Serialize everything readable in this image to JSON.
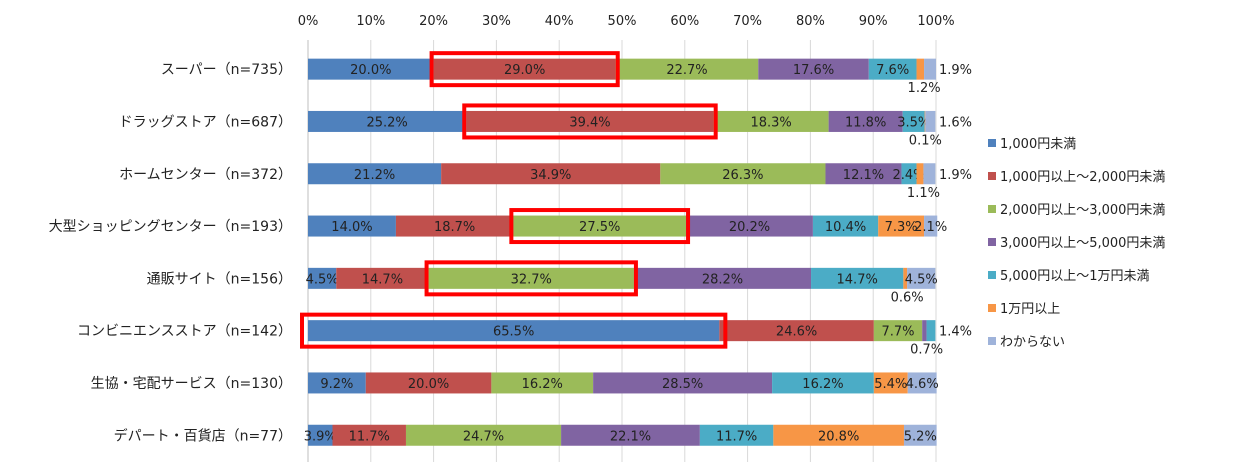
{
  "chart_data": {
    "type": "bar",
    "orientation": "horizontal",
    "stacked": true,
    "xlim": [
      0,
      100
    ],
    "xticks": [
      "0%",
      "10%",
      "20%",
      "30%",
      "40%",
      "50%",
      "60%",
      "70%",
      "80%",
      "90%",
      "100%"
    ],
    "categories": [
      "スーパー（n=735）",
      "ドラッグストア（n=687）",
      "ホームセンター（n=372）",
      "大型ショッピングセンター（n=193）",
      "通販サイト（n=156）",
      "コンビニエンスストア（n=142）",
      "生協・宅配サービス（n=130）",
      "デパート・百貨店（n=77）"
    ],
    "series": [
      {
        "name": "1,000円未満",
        "color": "#4f81bd",
        "values": [
          20.0,
          25.2,
          21.2,
          14.0,
          4.5,
          65.5,
          9.2,
          3.9
        ]
      },
      {
        "name": "1,000円以上～2,000円未満",
        "color": "#c0504d",
        "values": [
          29.0,
          39.4,
          34.9,
          18.7,
          14.7,
          24.6,
          20.0,
          11.7
        ]
      },
      {
        "name": "2,000円以上～3,000円未満",
        "color": "#9bbb59",
        "values": [
          22.7,
          18.3,
          26.3,
          27.5,
          32.7,
          7.7,
          16.2,
          24.7
        ]
      },
      {
        "name": "3,000円以上～5,000円未満",
        "color": "#8064a2",
        "values": [
          17.6,
          11.8,
          12.1,
          20.2,
          28.2,
          0.7,
          28.5,
          22.1
        ]
      },
      {
        "name": "5,000円以上～1万円未満",
        "color": "#4bacc6",
        "values": [
          7.6,
          3.5,
          2.4,
          10.4,
          14.7,
          1.4,
          16.2,
          11.7
        ]
      },
      {
        "name": "1万円以上",
        "color": "#f79646",
        "values": [
          1.2,
          0.1,
          1.1,
          7.3,
          0.6,
          0,
          5.4,
          20.8
        ]
      },
      {
        "name": "わからない",
        "color": "#9fb3da",
        "values": [
          1.9,
          1.6,
          1.9,
          2.1,
          4.5,
          0,
          4.6,
          5.2
        ]
      }
    ],
    "highlights": [
      {
        "category": 0,
        "series": 1
      },
      {
        "category": 1,
        "series": 1
      },
      {
        "category": 3,
        "series": 2
      },
      {
        "category": 4,
        "series": 2
      },
      {
        "category": 5,
        "series": 0
      }
    ],
    "highlight_color": "#ff0000",
    "legend": "right"
  }
}
